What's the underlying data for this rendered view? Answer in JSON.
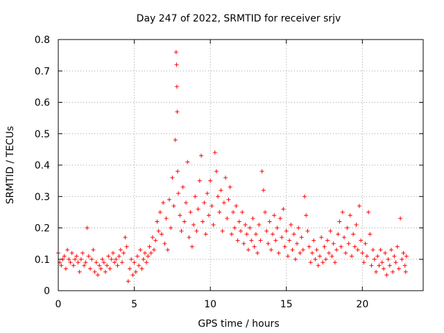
{
  "chart_data": {
    "type": "scatter",
    "title": "Day 247 of 2022, SRMTID for receiver srjv",
    "xlabel": "GPS time / hours",
    "ylabel": "SRMTID / TECUs",
    "xlim": [
      0,
      24
    ],
    "ylim": [
      0,
      0.8
    ],
    "xticks": [
      0,
      5,
      10,
      15,
      20
    ],
    "yticks": [
      0,
      0.1,
      0.2,
      0.3,
      0.4,
      0.5,
      0.6,
      0.7,
      0.8
    ],
    "xtick_labels": [
      "0",
      "5",
      "10",
      "15",
      "20"
    ],
    "ytick_labels": [
      "0",
      "0.1",
      "0.2",
      "0.3",
      "0.4",
      "0.5",
      "0.6",
      "0.7",
      "0.8"
    ],
    "grid": true,
    "marker": "plus",
    "color": "#ff0000",
    "series": [
      {
        "name": "SRMTID",
        "points": [
          [
            0.0,
            0.12
          ],
          [
            0.1,
            0.09
          ],
          [
            0.2,
            0.08
          ],
          [
            0.3,
            0.1
          ],
          [
            0.4,
            0.11
          ],
          [
            0.5,
            0.07
          ],
          [
            0.6,
            0.13
          ],
          [
            0.7,
            0.1
          ],
          [
            0.8,
            0.09
          ],
          [
            0.9,
            0.12
          ],
          [
            1.0,
            0.08
          ],
          [
            1.1,
            0.1
          ],
          [
            1.2,
            0.11
          ],
          [
            1.3,
            0.09
          ],
          [
            1.4,
            0.06
          ],
          [
            1.5,
            0.1
          ],
          [
            1.6,
            0.12
          ],
          [
            1.7,
            0.08
          ],
          [
            1.8,
            0.09
          ],
          [
            1.9,
            0.2
          ],
          [
            2.0,
            0.11
          ],
          [
            2.1,
            0.07
          ],
          [
            2.2,
            0.1
          ],
          [
            2.3,
            0.13
          ],
          [
            2.4,
            0.06
          ],
          [
            2.5,
            0.09
          ],
          [
            2.6,
            0.05
          ],
          [
            2.7,
            0.08
          ],
          [
            2.8,
            0.07
          ],
          [
            2.9,
            0.1
          ],
          [
            3.0,
            0.09
          ],
          [
            3.1,
            0.06
          ],
          [
            3.2,
            0.08
          ],
          [
            3.3,
            0.11
          ],
          [
            3.4,
            0.07
          ],
          [
            3.5,
            0.1
          ],
          [
            3.6,
            0.12
          ],
          [
            3.7,
            0.09
          ],
          [
            3.8,
            0.1
          ],
          [
            3.9,
            0.08
          ],
          [
            4.0,
            0.11
          ],
          [
            4.1,
            0.13
          ],
          [
            4.2,
            0.09
          ],
          [
            4.3,
            0.12
          ],
          [
            4.4,
            0.17
          ],
          [
            4.5,
            0.14
          ],
          [
            4.6,
            0.03
          ],
          [
            4.7,
            0.07
          ],
          [
            4.8,
            0.1
          ],
          [
            4.9,
            0.05
          ],
          [
            5.0,
            0.09
          ],
          [
            5.1,
            0.06
          ],
          [
            5.2,
            0.11
          ],
          [
            5.3,
            0.08
          ],
          [
            5.4,
            0.13
          ],
          [
            5.5,
            0.07
          ],
          [
            5.6,
            0.1
          ],
          [
            5.7,
            0.12
          ],
          [
            5.8,
            0.09
          ],
          [
            5.9,
            0.11
          ],
          [
            6.0,
            0.14
          ],
          [
            6.1,
            0.12
          ],
          [
            6.2,
            0.17
          ],
          [
            6.3,
            0.13
          ],
          [
            6.4,
            0.16
          ],
          [
            6.5,
            0.22
          ],
          [
            6.6,
            0.19
          ],
          [
            6.7,
            0.25
          ],
          [
            6.8,
            0.18
          ],
          [
            6.9,
            0.28
          ],
          [
            7.0,
            0.15
          ],
          [
            7.1,
            0.23
          ],
          [
            7.2,
            0.13
          ],
          [
            7.3,
            0.29
          ],
          [
            7.4,
            0.2
          ],
          [
            7.5,
            0.36
          ],
          [
            7.6,
            0.27
          ],
          [
            7.7,
            0.48
          ],
          [
            7.75,
            0.76
          ],
          [
            7.78,
            0.72
          ],
          [
            7.8,
            0.65
          ],
          [
            7.82,
            0.57
          ],
          [
            7.85,
            0.38
          ],
          [
            7.9,
            0.31
          ],
          [
            8.0,
            0.24
          ],
          [
            8.1,
            0.19
          ],
          [
            8.2,
            0.33
          ],
          [
            8.3,
            0.22
          ],
          [
            8.4,
            0.28
          ],
          [
            8.5,
            0.41
          ],
          [
            8.6,
            0.17
          ],
          [
            8.7,
            0.25
          ],
          [
            8.8,
            0.14
          ],
          [
            8.9,
            0.21
          ],
          [
            9.0,
            0.3
          ],
          [
            9.1,
            0.19
          ],
          [
            9.2,
            0.26
          ],
          [
            9.3,
            0.35
          ],
          [
            9.4,
            0.43
          ],
          [
            9.5,
            0.22
          ],
          [
            9.6,
            0.28
          ],
          [
            9.7,
            0.18
          ],
          [
            9.8,
            0.31
          ],
          [
            9.9,
            0.24
          ],
          [
            10.0,
            0.35
          ],
          [
            10.1,
            0.27
          ],
          [
            10.2,
            0.21
          ],
          [
            10.3,
            0.44
          ],
          [
            10.4,
            0.38
          ],
          [
            10.5,
            0.3
          ],
          [
            10.6,
            0.25
          ],
          [
            10.7,
            0.32
          ],
          [
            10.8,
            0.19
          ],
          [
            10.9,
            0.28
          ],
          [
            11.0,
            0.36
          ],
          [
            11.1,
            0.23
          ],
          [
            11.2,
            0.29
          ],
          [
            11.3,
            0.33
          ],
          [
            11.4,
            0.18
          ],
          [
            11.5,
            0.25
          ],
          [
            11.6,
            0.2
          ],
          [
            11.7,
            0.27
          ],
          [
            11.8,
            0.16
          ],
          [
            11.9,
            0.22
          ],
          [
            12.0,
            0.19
          ],
          [
            12.1,
            0.25
          ],
          [
            12.2,
            0.15
          ],
          [
            12.3,
            0.21
          ],
          [
            12.4,
            0.18
          ],
          [
            12.5,
            0.13
          ],
          [
            12.6,
            0.2
          ],
          [
            12.7,
            0.16
          ],
          [
            12.8,
            0.23
          ],
          [
            12.9,
            0.14
          ],
          [
            13.0,
            0.18
          ],
          [
            13.1,
            0.12
          ],
          [
            13.2,
            0.21
          ],
          [
            13.3,
            0.16
          ],
          [
            13.4,
            0.38
          ],
          [
            13.5,
            0.32
          ],
          [
            13.6,
            0.25
          ],
          [
            13.7,
            0.19
          ],
          [
            13.8,
            0.15
          ],
          [
            13.9,
            0.22
          ],
          [
            14.0,
            0.13
          ],
          [
            14.1,
            0.18
          ],
          [
            14.2,
            0.24
          ],
          [
            14.3,
            0.16
          ],
          [
            14.4,
            0.2
          ],
          [
            14.5,
            0.12
          ],
          [
            14.6,
            0.23
          ],
          [
            14.7,
            0.17
          ],
          [
            14.8,
            0.26
          ],
          [
            14.9,
            0.14
          ],
          [
            15.0,
            0.19
          ],
          [
            15.1,
            0.11
          ],
          [
            15.2,
            0.16
          ],
          [
            15.3,
            0.21
          ],
          [
            15.4,
            0.13
          ],
          [
            15.5,
            0.18
          ],
          [
            15.6,
            0.1
          ],
          [
            15.7,
            0.15
          ],
          [
            15.8,
            0.2
          ],
          [
            15.9,
            0.12
          ],
          [
            16.0,
            0.17
          ],
          [
            16.1,
            0.13
          ],
          [
            16.2,
            0.3
          ],
          [
            16.3,
            0.24
          ],
          [
            16.4,
            0.19
          ],
          [
            16.5,
            0.14
          ],
          [
            16.6,
            0.09
          ],
          [
            16.7,
            0.12
          ],
          [
            16.8,
            0.16
          ],
          [
            16.9,
            0.1
          ],
          [
            17.0,
            0.13
          ],
          [
            17.1,
            0.08
          ],
          [
            17.2,
            0.11
          ],
          [
            17.3,
            0.17
          ],
          [
            17.4,
            0.09
          ],
          [
            17.5,
            0.14
          ],
          [
            17.6,
            0.1
          ],
          [
            17.7,
            0.16
          ],
          [
            17.8,
            0.12
          ],
          [
            17.9,
            0.19
          ],
          [
            18.0,
            0.11
          ],
          [
            18.1,
            0.15
          ],
          [
            18.2,
            0.09
          ],
          [
            18.3,
            0.13
          ],
          [
            18.4,
            0.18
          ],
          [
            18.5,
            0.22
          ],
          [
            18.6,
            0.14
          ],
          [
            18.7,
            0.25
          ],
          [
            18.8,
            0.17
          ],
          [
            18.9,
            0.12
          ],
          [
            19.0,
            0.2
          ],
          [
            19.1,
            0.15
          ],
          [
            19.2,
            0.24
          ],
          [
            19.3,
            0.11
          ],
          [
            19.4,
            0.18
          ],
          [
            19.5,
            0.14
          ],
          [
            19.6,
            0.21
          ],
          [
            19.7,
            0.13
          ],
          [
            19.8,
            0.27
          ],
          [
            19.9,
            0.16
          ],
          [
            20.0,
            0.12
          ],
          [
            20.1,
            0.09
          ],
          [
            20.2,
            0.15
          ],
          [
            20.3,
            0.11
          ],
          [
            20.4,
            0.25
          ],
          [
            20.5,
            0.18
          ],
          [
            20.6,
            0.08
          ],
          [
            20.7,
            0.13
          ],
          [
            20.8,
            0.1
          ],
          [
            20.9,
            0.06
          ],
          [
            21.0,
            0.11
          ],
          [
            21.1,
            0.08
          ],
          [
            21.2,
            0.13
          ],
          [
            21.3,
            0.09
          ],
          [
            21.4,
            0.07
          ],
          [
            21.5,
            0.12
          ],
          [
            21.6,
            0.05
          ],
          [
            21.7,
            0.1
          ],
          [
            21.8,
            0.08
          ],
          [
            21.9,
            0.13
          ],
          [
            22.0,
            0.06
          ],
          [
            22.1,
            0.11
          ],
          [
            22.2,
            0.09
          ],
          [
            22.3,
            0.14
          ],
          [
            22.4,
            0.07
          ],
          [
            22.5,
            0.23
          ],
          [
            22.6,
            0.1
          ],
          [
            22.7,
            0.12
          ],
          [
            22.8,
            0.08
          ],
          [
            22.85,
            0.06
          ],
          [
            22.9,
            0.11
          ]
        ]
      }
    ]
  }
}
